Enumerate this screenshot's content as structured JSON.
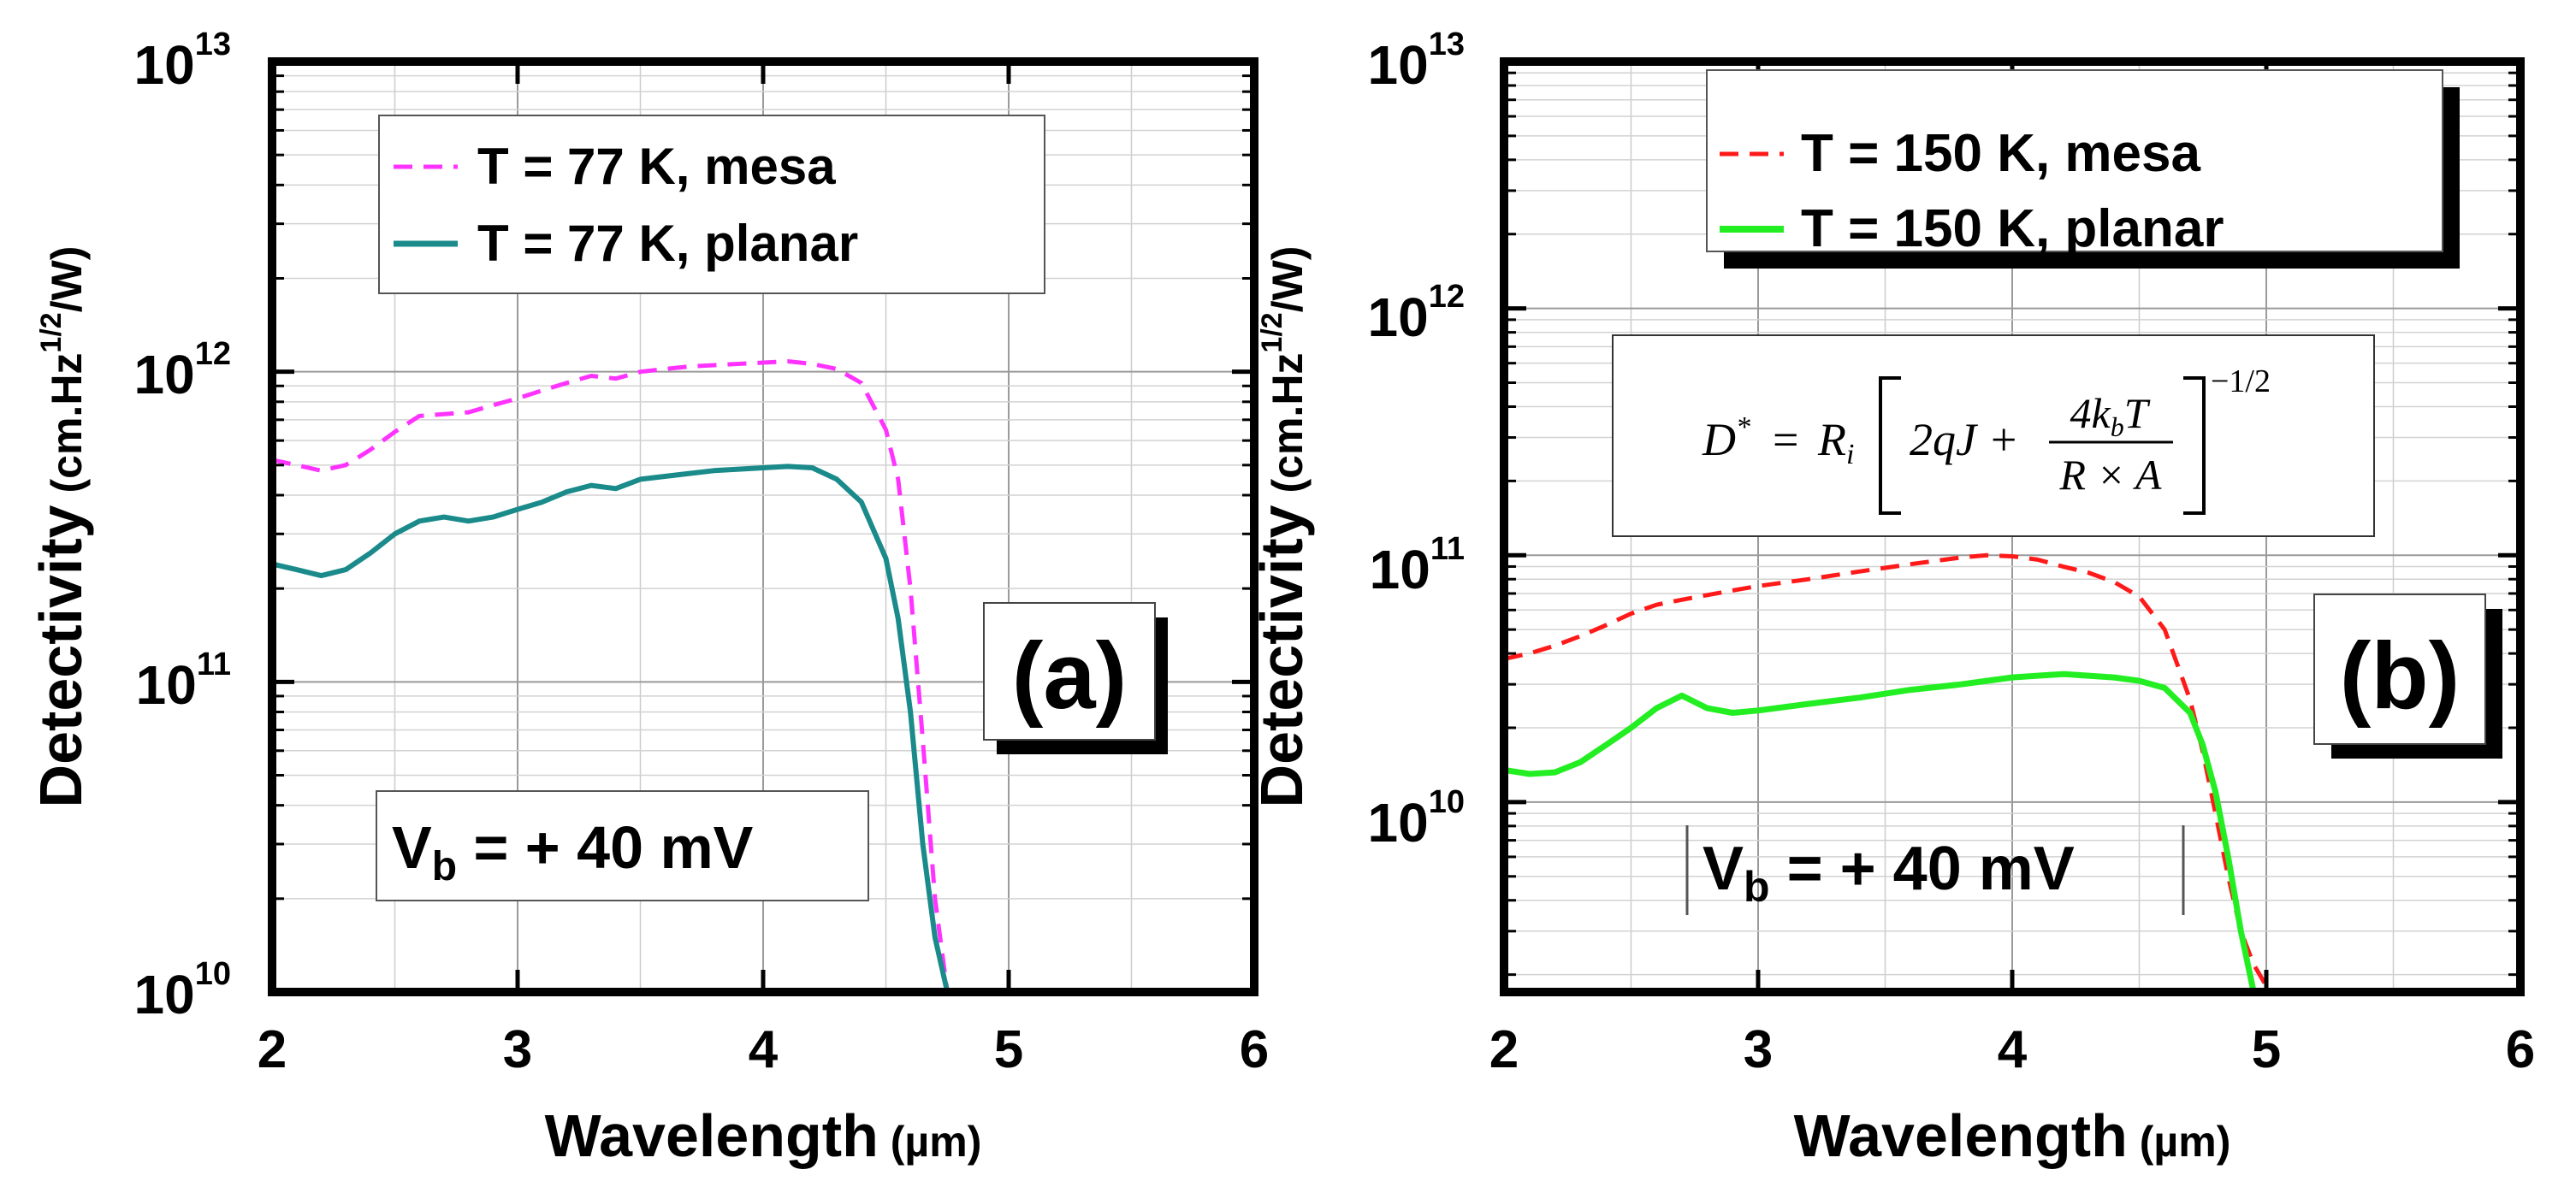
{
  "chart_data": [
    {
      "type": "line",
      "panel_label": "(a)",
      "xlabel_main": "Wavelength",
      "xlabel_unit": "(µm)",
      "ylabel_main": "Detectivity",
      "ylabel_unit_pre": "(cm.Hz",
      "ylabel_unit_sup": "1/2",
      "ylabel_unit_post": "/W)",
      "xlim": [
        2,
        6
      ],
      "ylim": [
        10000000000.0,
        10000000000000.0
      ],
      "yscale": "log",
      "xticks": [
        "2",
        "3",
        "4",
        "5",
        "6"
      ],
      "yticks": [
        {
          "base": "10",
          "exp": "10",
          "value": 10000000000.0
        },
        {
          "base": "10",
          "exp": "11",
          "value": 100000000000.0
        },
        {
          "base": "10",
          "exp": "12",
          "value": 1000000000000.0
        },
        {
          "base": "10",
          "exp": "13",
          "value": 10000000000000.0
        }
      ],
      "grid": true,
      "legend": "top",
      "annotation": {
        "main": "V",
        "sub": "b",
        "rest": " = + 40 mV"
      },
      "series": [
        {
          "name": "T = 77 K, mesa",
          "color": "#ff33ff",
          "dash": "dashed",
          "x": [
            2.0,
            2.1,
            2.2,
            2.3,
            2.4,
            2.5,
            2.6,
            2.7,
            2.8,
            2.9,
            3.0,
            3.1,
            3.2,
            3.3,
            3.4,
            3.5,
            3.6,
            3.7,
            3.8,
            3.9,
            4.0,
            4.1,
            4.2,
            4.3,
            4.4,
            4.5,
            4.55,
            4.6,
            4.65,
            4.7,
            4.75
          ],
          "y": [
            520000000000.0,
            500000000000.0,
            480000000000.0,
            500000000000.0,
            560000000000.0,
            640000000000.0,
            720000000000.0,
            730000000000.0,
            740000000000.0,
            780000000000.0,
            820000000000.0,
            870000000000.0,
            920000000000.0,
            970000000000.0,
            950000000000.0,
            1000000000000.0,
            1020000000000.0,
            1040000000000.0,
            1050000000000.0,
            1060000000000.0,
            1070000000000.0,
            1080000000000.0,
            1060000000000.0,
            1020000000000.0,
            920000000000.0,
            650000000000.0,
            450000000000.0,
            200000000000.0,
            65000000000.0,
            20000000000.0,
            10000000000.0
          ]
        },
        {
          "name": "T = 77 K, planar",
          "color": "#1a8a8a",
          "dash": "solid",
          "x": [
            2.0,
            2.1,
            2.2,
            2.3,
            2.4,
            2.5,
            2.6,
            2.7,
            2.8,
            2.9,
            3.0,
            3.1,
            3.2,
            3.3,
            3.4,
            3.5,
            3.6,
            3.7,
            3.8,
            3.9,
            4.0,
            4.1,
            4.2,
            4.3,
            4.4,
            4.5,
            4.55,
            4.6,
            4.65,
            4.7,
            4.75
          ],
          "y": [
            240000000000.0,
            230000000000.0,
            220000000000.0,
            230000000000.0,
            260000000000.0,
            300000000000.0,
            330000000000.0,
            340000000000.0,
            330000000000.0,
            340000000000.0,
            360000000000.0,
            380000000000.0,
            410000000000.0,
            430000000000.0,
            420000000000.0,
            450000000000.0,
            460000000000.0,
            470000000000.0,
            480000000000.0,
            485000000000.0,
            490000000000.0,
            495000000000.0,
            490000000000.0,
            450000000000.0,
            380000000000.0,
            250000000000.0,
            160000000000.0,
            80000000000.0,
            30000000000.0,
            15000000000.0,
            10000000000.0
          ]
        }
      ]
    },
    {
      "type": "line",
      "panel_label": "(b)",
      "xlabel_main": "Wavelength",
      "xlabel_unit": "(µm)",
      "ylabel_main": "Detectivity",
      "ylabel_unit_pre": "(cm.Hz",
      "ylabel_unit_sup": "1/2",
      "ylabel_unit_post": "/W)",
      "xlim": [
        2,
        6
      ],
      "ylim": [
        1700000000.0,
        10000000000000.0
      ],
      "yscale": "log",
      "xticks": [
        "2",
        "3",
        "4",
        "5",
        "6"
      ],
      "yticks": [
        {
          "base": "10",
          "exp": "10",
          "value": 10000000000.0
        },
        {
          "base": "10",
          "exp": "11",
          "value": 100000000000.0
        },
        {
          "base": "10",
          "exp": "12",
          "value": 1000000000000.0
        },
        {
          "base": "10",
          "exp": "13",
          "value": 10000000000000.0
        }
      ],
      "grid": true,
      "legend": "top",
      "annotation": {
        "main": "V",
        "sub": "b",
        "rest": " = + 40 mV"
      },
      "formula": {
        "lhs": "D",
        "lhs_sup": "*",
        "eq": "=",
        "r": "R",
        "r_sub": "i",
        "term1": "2qJ +",
        "num": "4k",
        "num_sub": "b",
        "num_post": "T",
        "den": "R × A",
        "exp": "−1/2"
      },
      "series": [
        {
          "name": "T = 150 K, mesa",
          "color": "#ff1a1a",
          "dash": "dashed",
          "x": [
            2.0,
            2.1,
            2.2,
            2.3,
            2.4,
            2.5,
            2.6,
            2.7,
            2.8,
            2.9,
            3.0,
            3.2,
            3.4,
            3.6,
            3.8,
            3.9,
            4.0,
            4.1,
            4.2,
            4.3,
            4.4,
            4.5,
            4.6,
            4.7,
            4.75,
            4.8,
            4.85,
            4.9,
            4.95,
            5.0
          ],
          "y": [
            38000000000.0,
            40000000000.0,
            43000000000.0,
            47000000000.0,
            52000000000.0,
            58000000000.0,
            63000000000.0,
            66000000000.0,
            69000000000.0,
            72000000000.0,
            75000000000.0,
            80000000000.0,
            86000000000.0,
            92000000000.0,
            98000000000.0,
            100000000000.0,
            99000000000.0,
            96000000000.0,
            90000000000.0,
            85000000000.0,
            78000000000.0,
            68000000000.0,
            50000000000.0,
            26000000000.0,
            16000000000.0,
            9000000000.0,
            5000000000.0,
            3000000000.0,
            2200000000.0,
            1800000000.0
          ]
        },
        {
          "name": "T = 150 K, planar",
          "color": "#22ee22",
          "dash": "solid",
          "x": [
            2.0,
            2.1,
            2.2,
            2.3,
            2.4,
            2.5,
            2.6,
            2.7,
            2.8,
            2.9,
            3.0,
            3.2,
            3.4,
            3.6,
            3.8,
            3.9,
            4.0,
            4.1,
            4.2,
            4.3,
            4.4,
            4.5,
            4.6,
            4.7,
            4.75,
            4.8,
            4.85,
            4.9,
            4.95
          ],
          "y": [
            13500000000.0,
            13000000000.0,
            13200000000.0,
            14500000000.0,
            17000000000.0,
            20000000000.0,
            24000000000.0,
            27000000000.0,
            24000000000.0,
            23000000000.0,
            23500000000.0,
            25000000000.0,
            26500000000.0,
            28500000000.0,
            30000000000.0,
            31000000000.0,
            32000000000.0,
            32500000000.0,
            33000000000.0,
            32500000000.0,
            32000000000.0,
            31000000000.0,
            29000000000.0,
            23000000000.0,
            17000000000.0,
            11000000000.0,
            6000000000.0,
            3000000000.0,
            1700000000.0
          ]
        }
      ]
    }
  ]
}
